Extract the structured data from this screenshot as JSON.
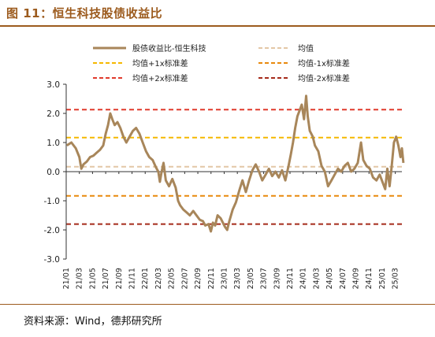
{
  "figure": {
    "title": "图 11：恒生科技股债收益比",
    "source": "资料来源：Wind，德邦研究所"
  },
  "chart_data": {
    "type": "line",
    "title": "",
    "xlabel": "",
    "ylabel": "",
    "ylim": [
      -3.0,
      3.0
    ],
    "yticks": [
      "3.0",
      "2.0",
      "1.0",
      "0.0",
      "-1.0",
      "-2.0",
      "-3.0"
    ],
    "xlim": [
      "2021-01",
      "2025-04"
    ],
    "xticks": [
      "21/01",
      "21/03",
      "21/05",
      "21/07",
      "21/09",
      "21/11",
      "22/01",
      "22/03",
      "22/05",
      "22/07",
      "22/09",
      "22/11",
      "23/01",
      "23/03",
      "23/05",
      "23/07",
      "23/09",
      "23/11",
      "24/01",
      "24/03",
      "24/05",
      "24/07",
      "24/09",
      "24/11",
      "25/01",
      "25/03"
    ],
    "legend_position": "top",
    "grid": false,
    "series": [
      {
        "name": "股债收益比-恒生科技",
        "color": "#a8865a",
        "style": "solid",
        "points": [
          [
            "2021-01-04",
            0.9
          ],
          [
            "2021-01-25",
            1.0
          ],
          [
            "2021-02-15",
            0.8
          ],
          [
            "2021-03-01",
            0.5
          ],
          [
            "2021-03-10",
            0.1
          ],
          [
            "2021-03-20",
            0.25
          ],
          [
            "2021-04-05",
            0.35
          ],
          [
            "2021-04-20",
            0.5
          ],
          [
            "2021-05-05",
            0.55
          ],
          [
            "2021-05-20",
            0.65
          ],
          [
            "2021-06-05",
            0.75
          ],
          [
            "2021-06-20",
            0.9
          ],
          [
            "2021-07-01",
            1.3
          ],
          [
            "2021-07-12",
            1.6
          ],
          [
            "2021-07-22",
            2.0
          ],
          [
            "2021-08-01",
            1.8
          ],
          [
            "2021-08-12",
            1.6
          ],
          [
            "2021-08-25",
            1.7
          ],
          [
            "2021-09-08",
            1.5
          ],
          [
            "2021-09-22",
            1.2
          ],
          [
            "2021-10-05",
            1.0
          ],
          [
            "2021-10-20",
            1.2
          ],
          [
            "2021-11-05",
            1.4
          ],
          [
            "2021-11-20",
            1.5
          ],
          [
            "2021-12-05",
            1.3
          ],
          [
            "2021-12-20",
            1.0
          ],
          [
            "2022-01-05",
            0.7
          ],
          [
            "2022-01-20",
            0.5
          ],
          [
            "2022-02-05",
            0.4
          ],
          [
            "2022-02-20",
            0.15
          ],
          [
            "2022-03-01",
            0.0
          ],
          [
            "2022-03-08",
            -0.35
          ],
          [
            "2022-03-15",
            -0.05
          ],
          [
            "2022-03-25",
            0.3
          ],
          [
            "2022-04-05",
            -0.3
          ],
          [
            "2022-04-20",
            -0.5
          ],
          [
            "2022-05-05",
            -0.25
          ],
          [
            "2022-05-20",
            -0.55
          ],
          [
            "2022-06-01",
            -1.0
          ],
          [
            "2022-06-10",
            -1.15
          ],
          [
            "2022-06-25",
            -1.3
          ],
          [
            "2022-07-10",
            -1.4
          ],
          [
            "2022-07-25",
            -1.5
          ],
          [
            "2022-08-10",
            -1.35
          ],
          [
            "2022-08-25",
            -1.5
          ],
          [
            "2022-09-10",
            -1.65
          ],
          [
            "2022-09-25",
            -1.7
          ],
          [
            "2022-10-05",
            -1.85
          ],
          [
            "2022-10-20",
            -1.8
          ],
          [
            "2022-10-31",
            -2.05
          ],
          [
            "2022-11-10",
            -1.75
          ],
          [
            "2022-11-20",
            -1.85
          ],
          [
            "2022-12-01",
            -1.5
          ],
          [
            "2022-12-15",
            -1.6
          ],
          [
            "2023-01-05",
            -1.9
          ],
          [
            "2023-01-15",
            -2.0
          ],
          [
            "2023-01-25",
            -1.7
          ],
          [
            "2023-02-10",
            -1.3
          ],
          [
            "2023-02-25",
            -1.05
          ],
          [
            "2023-03-10",
            -0.65
          ],
          [
            "2023-03-25",
            -0.3
          ],
          [
            "2023-04-10",
            -0.7
          ],
          [
            "2023-04-25",
            -0.3
          ],
          [
            "2023-05-10",
            0.05
          ],
          [
            "2023-05-25",
            0.25
          ],
          [
            "2023-06-10",
            0.0
          ],
          [
            "2023-06-25",
            -0.3
          ],
          [
            "2023-07-10",
            -0.1
          ],
          [
            "2023-07-25",
            0.1
          ],
          [
            "2023-08-10",
            -0.15
          ],
          [
            "2023-08-25",
            0.0
          ],
          [
            "2023-09-10",
            -0.2
          ],
          [
            "2023-09-25",
            0.05
          ],
          [
            "2023-10-10",
            -0.3
          ],
          [
            "2023-10-25",
            0.2
          ],
          [
            "2023-11-05",
            0.6
          ],
          [
            "2023-11-15",
            1.0
          ],
          [
            "2023-11-25",
            1.5
          ],
          [
            "2023-12-05",
            1.9
          ],
          [
            "2023-12-15",
            2.1
          ],
          [
            "2023-12-25",
            2.3
          ],
          [
            "2024-01-05",
            1.8
          ],
          [
            "2024-01-15",
            2.6
          ],
          [
            "2024-01-22",
            1.9
          ],
          [
            "2024-02-01",
            1.4
          ],
          [
            "2024-02-15",
            1.2
          ],
          [
            "2024-02-25",
            0.9
          ],
          [
            "2024-03-10",
            0.7
          ],
          [
            "2024-03-25",
            0.2
          ],
          [
            "2024-04-10",
            0.0
          ],
          [
            "2024-04-25",
            -0.5
          ],
          [
            "2024-05-10",
            -0.3
          ],
          [
            "2024-05-25",
            -0.1
          ],
          [
            "2024-06-10",
            0.1
          ],
          [
            "2024-06-25",
            0.0
          ],
          [
            "2024-07-10",
            0.2
          ],
          [
            "2024-07-25",
            0.3
          ],
          [
            "2024-08-10",
            0.0
          ],
          [
            "2024-08-25",
            0.1
          ],
          [
            "2024-09-10",
            0.3
          ],
          [
            "2024-09-25",
            1.0
          ],
          [
            "2024-10-05",
            0.4
          ],
          [
            "2024-10-20",
            0.2
          ],
          [
            "2024-11-05",
            0.1
          ],
          [
            "2024-11-20",
            -0.2
          ],
          [
            "2024-12-05",
            -0.3
          ],
          [
            "2024-12-20",
            -0.1
          ],
          [
            "2025-01-05",
            -0.4
          ],
          [
            "2025-01-15",
            -0.6
          ],
          [
            "2025-01-25",
            0.1
          ],
          [
            "2025-02-05",
            -0.5
          ],
          [
            "2025-02-15",
            0.2
          ],
          [
            "2025-02-25",
            1.0
          ],
          [
            "2025-03-05",
            1.2
          ],
          [
            "2025-03-15",
            0.9
          ],
          [
            "2025-03-25",
            0.5
          ],
          [
            "2025-04-01",
            0.8
          ],
          [
            "2025-04-08",
            0.3
          ]
        ]
      },
      {
        "name": "均值",
        "color": "#e3c7a6",
        "style": "dashed",
        "value": 0.17
      },
      {
        "name": "均值+1x标准差",
        "color": "#f5b800",
        "style": "dashed",
        "value": 1.17
      },
      {
        "name": "均值-1x标准差",
        "color": "#e8890c",
        "style": "dashed",
        "value": -0.83
      },
      {
        "name": "均值+2x标准差",
        "color": "#e03a2c",
        "style": "dashed",
        "value": 2.13
      },
      {
        "name": "均值-2x标准差",
        "color": "#a52a1a",
        "style": "dashed",
        "value": -1.8
      }
    ]
  }
}
